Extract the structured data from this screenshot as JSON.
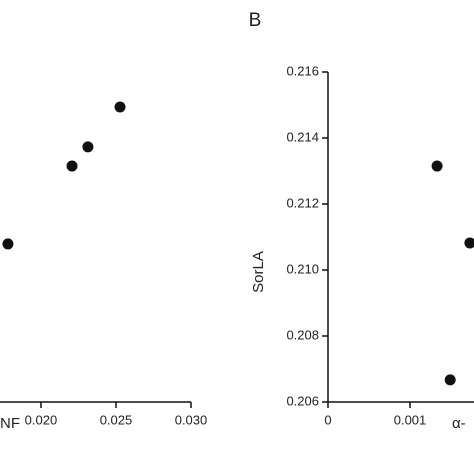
{
  "chart_data": [
    {
      "type": "scatter",
      "xlabel": "NF",
      "x": [
        0.0178,
        0.02207,
        0.02313,
        0.02527
      ],
      "values": [
        0.21079,
        0.21315,
        0.21373,
        0.21494
      ],
      "color": "#111111",
      "xlim": [
        0.01727,
        0.03
      ],
      "xticks": [
        {
          "value": 0.02,
          "label": "0.020"
        },
        {
          "value": 0.025,
          "label": "0.025"
        },
        {
          "value": 0.03,
          "label": "0.030"
        }
      ],
      "ylim": [
        0.206,
        0.216
      ]
    },
    {
      "type": "scatter",
      "panel_label": "B",
      "ylabel": "SorLA",
      "xlabel": "α-",
      "x": [
        0.00133,
        0.00149,
        0.00173
      ],
      "values": [
        0.21315,
        0.20667,
        0.21082
      ],
      "color": "#111111",
      "xlim": [
        0,
        0.00178
      ],
      "xticks": [
        0,
        0.001
      ],
      "ylim": [
        0.206,
        0.216
      ],
      "yticks": [
        0.206,
        0.208,
        {
          "value": 0.21,
          "label": "0.210"
        },
        0.212,
        0.214,
        0.216
      ]
    }
  ]
}
